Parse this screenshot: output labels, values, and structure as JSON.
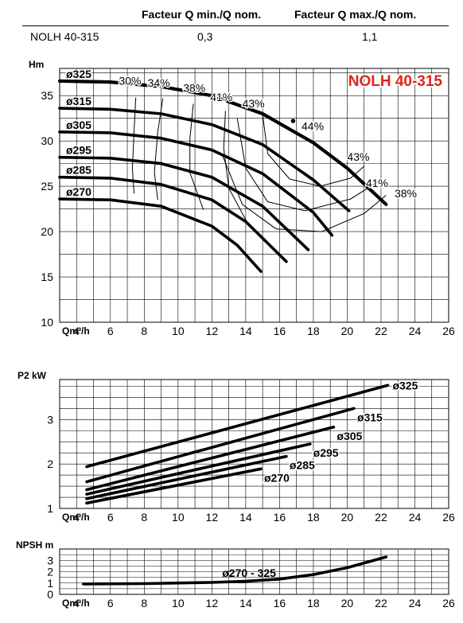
{
  "table": {
    "col1_header": "Facteur Q min./Q nom.",
    "col2_header": "Facteur Q max./Q nom.",
    "model": "NOLH 40-315",
    "qmin_factor": "0,3",
    "qmax_factor": "1,1"
  },
  "chart_data": [
    {
      "type": "line",
      "id": "head",
      "title": "NOLH 40-315",
      "ylabel": "Hm",
      "xlabel": "Qm³/h",
      "xlim": [
        3,
        26
      ],
      "ylim": [
        10,
        38
      ],
      "xticks": [
        4,
        6,
        8,
        10,
        12,
        14,
        16,
        18,
        20,
        22,
        24,
        26
      ],
      "yticks": [
        10,
        15,
        20,
        25,
        30,
        35
      ],
      "x_tick_labels": [
        "4",
        "6",
        "8",
        "10",
        "12",
        "14",
        "16",
        "18",
        "20",
        "22",
        "24",
        "26"
      ],
      "y_tick_labels": [
        "10",
        "15",
        "20",
        "25",
        "30",
        "35"
      ],
      "grid": true,
      "series": [
        {
          "name": "ø325",
          "x": [
            3,
            6,
            9,
            12,
            15,
            18,
            20,
            22.3
          ],
          "y": [
            36.6,
            36.5,
            36.0,
            35.0,
            33.0,
            29.8,
            27.0,
            23.0
          ]
        },
        {
          "name": "ø315",
          "x": [
            3,
            6,
            9,
            12,
            15,
            18,
            20.1
          ],
          "y": [
            33.6,
            33.5,
            33.0,
            31.8,
            29.6,
            25.7,
            22.3
          ]
        },
        {
          "name": "ø305",
          "x": [
            3,
            6,
            9,
            12,
            15,
            18,
            19.1
          ],
          "y": [
            31.0,
            30.9,
            30.3,
            29.0,
            26.4,
            22.1,
            19.6
          ]
        },
        {
          "name": "ø295",
          "x": [
            3,
            6,
            9,
            12,
            15,
            17.7
          ],
          "y": [
            28.2,
            28.1,
            27.5,
            26.0,
            22.8,
            18.0
          ]
        },
        {
          "name": "ø285",
          "x": [
            3,
            6,
            9,
            12,
            14,
            16.4
          ],
          "y": [
            26.0,
            25.9,
            25.2,
            23.5,
            21.1,
            16.7
          ]
        },
        {
          "name": "ø270",
          "x": [
            3,
            6,
            9,
            12,
            13.5,
            14.9
          ],
          "y": [
            23.6,
            23.5,
            22.8,
            20.6,
            18.5,
            15.6
          ]
        }
      ],
      "efficiency_labels": [
        "30%",
        "34%",
        "38%",
        "41%",
        "43%",
        "44%",
        "43%",
        "41%",
        "38%"
      ]
    },
    {
      "type": "line",
      "id": "power",
      "ylabel": "P2 kW",
      "xlabel": "Qm³/h",
      "xlim": [
        3,
        26
      ],
      "ylim": [
        1,
        3.9
      ],
      "xticks": [
        4,
        6,
        8,
        10,
        12,
        14,
        16,
        18,
        20,
        22,
        24,
        26
      ],
      "yticks": [
        1,
        2,
        3
      ],
      "x_tick_labels": [
        "4",
        "6",
        "8",
        "10",
        "12",
        "14",
        "16",
        "18",
        "20",
        "22",
        "24",
        "26"
      ],
      "y_tick_labels": [
        "1",
        "2",
        "3"
      ],
      "grid": true,
      "series": [
        {
          "name": "ø325",
          "x": [
            4.6,
            22.4
          ],
          "y": [
            1.94,
            3.77
          ]
        },
        {
          "name": "ø315",
          "x": [
            4.6,
            20.4
          ],
          "y": [
            1.6,
            3.25
          ]
        },
        {
          "name": "ø305",
          "x": [
            4.6,
            19.2
          ],
          "y": [
            1.42,
            2.83
          ]
        },
        {
          "name": "ø295",
          "x": [
            4.6,
            17.8
          ],
          "y": [
            1.32,
            2.45
          ]
        },
        {
          "name": "ø285",
          "x": [
            4.6,
            16.4
          ],
          "y": [
            1.22,
            2.17
          ]
        },
        {
          "name": "ø270",
          "x": [
            4.6,
            14.9
          ],
          "y": [
            1.12,
            1.89
          ]
        }
      ]
    },
    {
      "type": "line",
      "id": "npsh",
      "ylabel": "NPSH m",
      "xlabel": "Qm³/h",
      "xlim": [
        3,
        26
      ],
      "ylim": [
        0,
        4
      ],
      "xticks": [
        4,
        6,
        8,
        10,
        12,
        14,
        16,
        18,
        20,
        22,
        24,
        26
      ],
      "yticks": [
        0,
        1,
        2,
        3
      ],
      "x_tick_labels": [
        "4",
        "6",
        "8",
        "10",
        "12",
        "14",
        "16",
        "18",
        "20",
        "22",
        "24",
        "26"
      ],
      "y_tick_labels": [
        "0",
        "1",
        "2",
        "3"
      ],
      "grid": true,
      "series": [
        {
          "name": "ø270 - 325",
          "x": [
            4.4,
            8,
            12,
            14,
            16,
            18,
            20,
            22.3
          ],
          "y": [
            0.92,
            0.95,
            1.05,
            1.15,
            1.35,
            1.75,
            2.35,
            3.3
          ]
        }
      ]
    }
  ]
}
